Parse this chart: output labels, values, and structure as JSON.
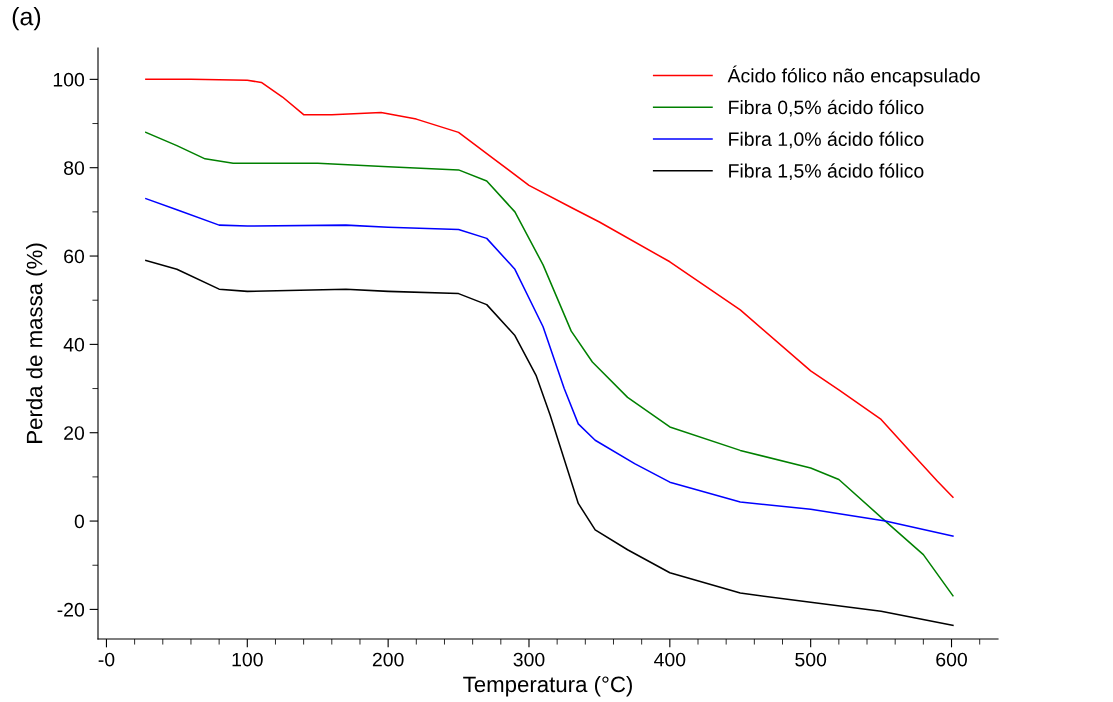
{
  "chart_data": {
    "type": "line",
    "xlabel": "Temperatura (°C)",
    "ylabel": "Perda de massa (%)",
    "annotations": [
      "(a)"
    ],
    "xlim": [
      -6,
      633
    ],
    "ylim": [
      -26.7,
      107.1
    ],
    "xticks": [
      {
        "value": 0,
        "label": "-0"
      },
      100,
      200,
      300,
      400,
      500,
      600
    ],
    "yticks": [
      -20,
      0,
      20,
      40,
      60,
      80,
      100
    ],
    "legend": "top right",
    "grid": false,
    "marker": "none",
    "line_style": "solid",
    "series": [
      {
        "name": "Ácido fólico não encapsulado",
        "color": "#ff0000",
        "x": [
          28,
          60,
          100,
          110,
          125,
          140,
          160,
          195,
          220,
          250,
          275,
          300,
          330,
          350,
          400,
          450,
          500,
          520,
          550,
          570,
          590,
          601
        ],
        "values": [
          100,
          100,
          99.8,
          99.3,
          96,
          92,
          92,
          92.5,
          91,
          88,
          82,
          76,
          71,
          67.7,
          58.7,
          47.8,
          34,
          29.7,
          23,
          16,
          9,
          5.4
        ]
      },
      {
        "name": "Fibra 0,5% ácido fólico",
        "color": "#008000",
        "x": [
          28,
          50,
          70,
          90,
          150,
          200,
          250,
          270,
          290,
          310,
          330,
          345,
          370,
          400,
          450,
          500,
          520,
          553,
          580,
          601
        ],
        "values": [
          88,
          85,
          82,
          81,
          81,
          80.2,
          79.5,
          77,
          70,
          58,
          43,
          36,
          28,
          21.3,
          16,
          12,
          9.4,
          0,
          -7.6,
          -16.9
        ]
      },
      {
        "name": "Fibra 1,0% ácido fólico",
        "color": "#0000ff",
        "x": [
          28,
          50,
          80,
          100,
          170,
          200,
          250,
          270,
          290,
          310,
          325,
          335,
          347,
          375,
          400,
          450,
          500,
          553,
          601
        ],
        "values": [
          73,
          70.5,
          67,
          66.8,
          67,
          66.5,
          66,
          64,
          57,
          44,
          30,
          22,
          18.3,
          13,
          8.8,
          4.3,
          2.7,
          0,
          -3.4
        ]
      },
      {
        "name": "Fibra 1,5% ácido fólico",
        "color": "#000000",
        "x": [
          28,
          50,
          80,
          100,
          170,
          200,
          250,
          270,
          290,
          305,
          315,
          325,
          335,
          347,
          370,
          400,
          450,
          500,
          550,
          601
        ],
        "values": [
          59,
          57,
          52.5,
          52,
          52.5,
          52,
          51.5,
          49,
          42,
          33,
          24,
          14,
          4,
          -2,
          -6.5,
          -11.7,
          -16.3,
          -18.4,
          -20.4,
          -23.6
        ]
      }
    ]
  }
}
